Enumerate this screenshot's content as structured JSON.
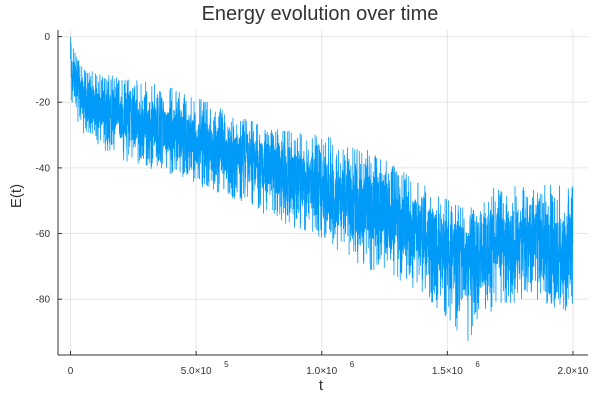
{
  "chart_data": {
    "type": "line",
    "title": "Energy evolution over time",
    "xlabel": "t",
    "ylabel": "E(t)",
    "xlim": [
      -50000,
      2060000
    ],
    "ylim": [
      -97,
      2
    ],
    "grid": true,
    "legend": "none",
    "x_ticks": [
      {
        "value": 0,
        "base": "0",
        "exp": ""
      },
      {
        "value": 500000,
        "base": "5.0×10",
        "exp": "5"
      },
      {
        "value": 1000000,
        "base": "1.0×10",
        "exp": "6"
      },
      {
        "value": 1500000,
        "base": "1.5×10",
        "exp": "6"
      },
      {
        "value": 2000000,
        "base": "2.0×10",
        "exp": "6"
      }
    ],
    "y_ticks": [
      {
        "value": 0,
        "label": "0"
      },
      {
        "value": -20,
        "label": "-20"
      },
      {
        "value": -40,
        "label": "-40"
      },
      {
        "value": -60,
        "label": "-60"
      },
      {
        "value": -80,
        "label": "-80"
      }
    ],
    "series": [
      {
        "color": "#009af9",
        "x_range": [
          0,
          2000000
        ],
        "trend": [
          {
            "x": 0,
            "upper": 0,
            "mean": -10,
            "lower": -20
          },
          {
            "x": 50000,
            "upper": -10,
            "mean": -20,
            "lower": -30
          },
          {
            "x": 200000,
            "upper": -12,
            "mean": -24,
            "lower": -38
          },
          {
            "x": 400000,
            "upper": -15,
            "mean": -29,
            "lower": -42
          },
          {
            "x": 600000,
            "upper": -22,
            "mean": -35,
            "lower": -48
          },
          {
            "x": 800000,
            "upper": -28,
            "mean": -40,
            "lower": -55
          },
          {
            "x": 1000000,
            "upper": -30,
            "mean": -47,
            "lower": -62
          },
          {
            "x": 1200000,
            "upper": -35,
            "mean": -52,
            "lower": -72
          },
          {
            "x": 1400000,
            "upper": -45,
            "mean": -60,
            "lower": -78
          },
          {
            "x": 1580000,
            "upper": -52,
            "mean": -70,
            "lower": -93
          },
          {
            "x": 1700000,
            "upper": -45,
            "mean": -62,
            "lower": -82
          },
          {
            "x": 1850000,
            "upper": -45,
            "mean": -63,
            "lower": -80
          },
          {
            "x": 2000000,
            "upper": -45,
            "mean": -66,
            "lower": -85
          }
        ]
      }
    ]
  }
}
